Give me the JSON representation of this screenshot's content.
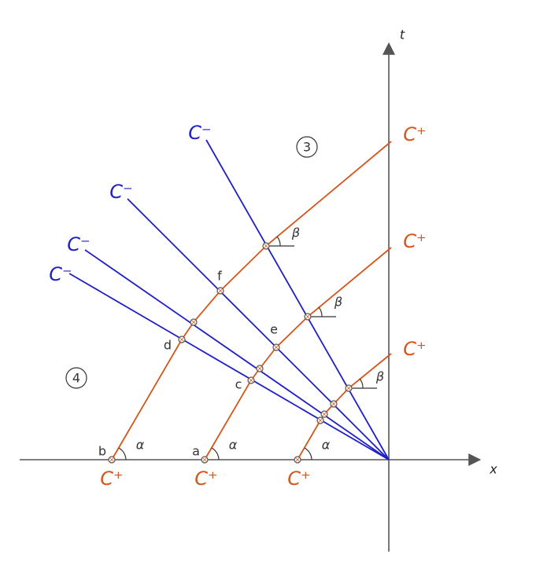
{
  "axes": {
    "t": "t",
    "x": "x"
  },
  "c_minus": [
    "C⁻",
    "C⁻",
    "C⁻",
    "C⁻"
  ],
  "c_plus_right": [
    "C⁺",
    "C⁺",
    "C⁺"
  ],
  "c_plus_bottom": [
    "C⁺",
    "C⁺",
    "C⁺"
  ],
  "regions": [
    "3",
    "4"
  ],
  "points": [
    "a",
    "b",
    "c",
    "d",
    "e",
    "f"
  ],
  "angles": {
    "alpha": [
      "α",
      "α",
      "α"
    ],
    "beta": [
      "β",
      "β",
      "β"
    ]
  }
}
